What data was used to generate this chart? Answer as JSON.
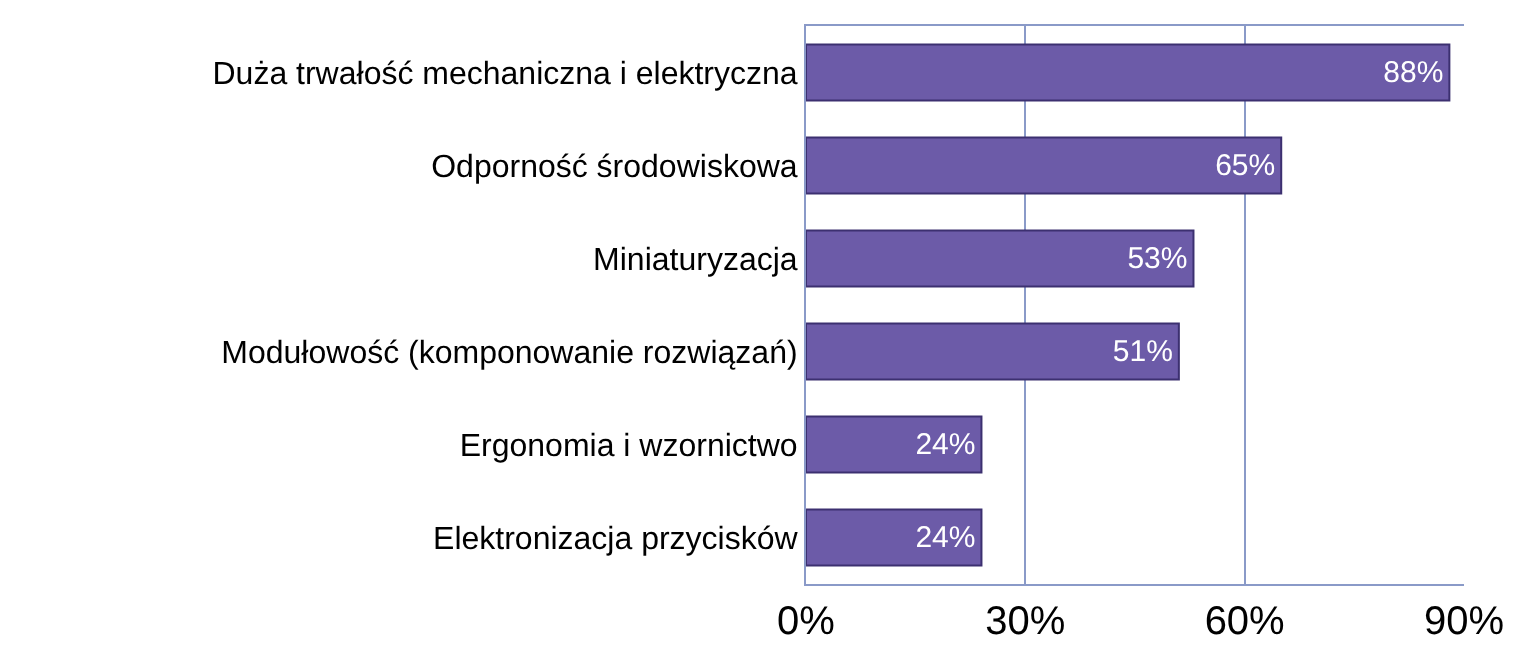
{
  "chart_data": {
    "type": "bar",
    "orientation": "horizontal",
    "categories": [
      "Duża trwałość mechaniczna i elektryczna",
      "Odporność środowiskowa",
      "Miniaturyzacja",
      "Modułowość (komponowanie rozwiązań)",
      "Ergonomia i wzornictwo",
      "Elektronizacja przycisków"
    ],
    "values": [
      88,
      65,
      53,
      51,
      24,
      24
    ],
    "value_labels": [
      "88%",
      "65%",
      "53%",
      "51%",
      "24%",
      "24%"
    ],
    "color": "#6c5ba8",
    "xlim": [
      0,
      90
    ],
    "xticks": [
      {
        "value": 0,
        "label": "0%"
      },
      {
        "value": 30,
        "label": "30%"
      },
      {
        "value": 60,
        "label": "60%"
      },
      {
        "value": 90,
        "label": "90%"
      }
    ],
    "grid": "x",
    "legend": false
  }
}
